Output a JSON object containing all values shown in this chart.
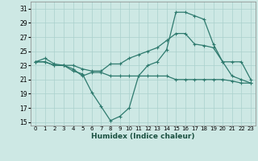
{
  "xlabel": "Humidex (Indice chaleur)",
  "background_color": "#cde8e4",
  "grid_color": "#aad0cc",
  "line_color": "#2e7a6e",
  "x_values": [
    0,
    1,
    2,
    3,
    4,
    5,
    6,
    7,
    8,
    9,
    10,
    11,
    12,
    13,
    14,
    15,
    16,
    17,
    18,
    19,
    20,
    21,
    22,
    23
  ],
  "line1": [
    23.5,
    24.0,
    23.2,
    23.0,
    23.0,
    22.5,
    22.2,
    22.2,
    23.2,
    23.2,
    24.0,
    24.5,
    25.0,
    25.5,
    26.5,
    27.5,
    27.5,
    26.0,
    25.8,
    25.5,
    23.5,
    23.5,
    23.5,
    21.0
  ],
  "line2": [
    23.5,
    23.5,
    23.0,
    23.0,
    22.5,
    21.5,
    22.0,
    22.0,
    21.5,
    21.5,
    21.5,
    21.5,
    21.5,
    21.5,
    21.5,
    21.0,
    21.0,
    21.0,
    21.0,
    21.0,
    21.0,
    20.8,
    20.5,
    20.5
  ],
  "line3": [
    23.5,
    23.5,
    23.0,
    23.0,
    22.2,
    21.8,
    19.2,
    17.2,
    15.2,
    15.8,
    17.0,
    21.5,
    23.0,
    23.5,
    25.2,
    30.5,
    30.5,
    30.0,
    29.5,
    26.0,
    23.5,
    21.5,
    21.0,
    20.5
  ],
  "ylim": [
    14.5,
    32
  ],
  "yticks": [
    15,
    17,
    19,
    21,
    23,
    25,
    27,
    29,
    31
  ],
  "xlim": [
    -0.5,
    23.5
  ]
}
